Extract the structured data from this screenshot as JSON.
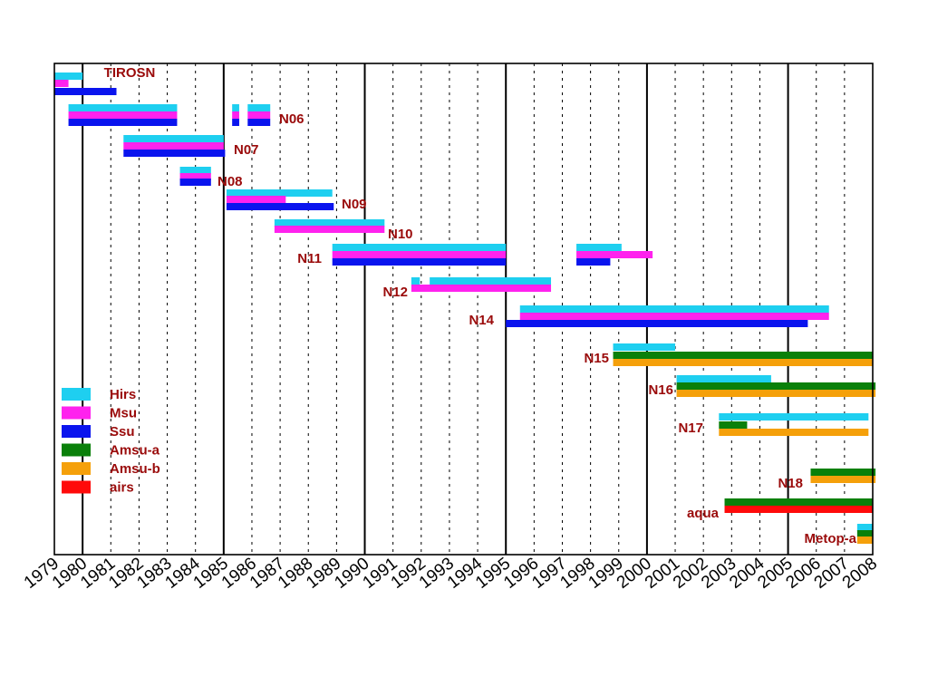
{
  "chart_data": {
    "type": "gantt",
    "title": "",
    "xlabel": "",
    "ylabel": "",
    "xlim": [
      1980.0,
      2009.0
    ],
    "x_tick_labels": [
      "1979",
      "1980",
      "1981",
      "1982",
      "1983",
      "1984",
      "1985",
      "1986",
      "1987",
      "1988",
      "1989",
      "1990",
      "1991",
      "1992",
      "1993",
      "1994",
      "1995",
      "1996",
      "1997",
      "1998",
      "1999",
      "2000",
      "2001",
      "2002",
      "2003",
      "2004",
      "2005",
      "2006",
      "2007",
      "2008"
    ],
    "major_gridlines": [
      1981,
      1986,
      1991,
      1996,
      2001,
      2006
    ],
    "grid": "dotted yearly lines, solid every 5 years",
    "colors": {
      "Hirs": "#1ecff0",
      "Msu": "#ff22ee",
      "Ssu": "#0a14ee",
      "Amsu-a": "#0a800a",
      "Amsu-b": "#f5a00a",
      "airs": "#ff0a0a",
      "label": "#9a0a0a",
      "frame": "#000000"
    },
    "legend": {
      "position": "left-middle",
      "entries": [
        "Hirs",
        "Msu",
        "Ssu",
        "Amsu-a",
        "Amsu-b",
        "airs"
      ]
    },
    "satellites": [
      {
        "name": "TIROSN",
        "bars": [
          {
            "instrument": "Hirs",
            "start": 1980.0,
            "end": 1981.0
          },
          {
            "instrument": "Msu",
            "start": 1980.0,
            "end": 1980.5
          },
          {
            "instrument": "Ssu",
            "start": 1980.0,
            "end": 1982.2
          }
        ]
      },
      {
        "name": "N06",
        "bars": [
          {
            "instrument": "Hirs",
            "start": 1980.5,
            "end": 1984.35
          },
          {
            "instrument": "Msu",
            "start": 1980.5,
            "end": 1984.35
          },
          {
            "instrument": "Ssu",
            "start": 1980.5,
            "end": 1984.35
          },
          {
            "instrument": "Hirs",
            "start": 1986.3,
            "end": 1986.55
          },
          {
            "instrument": "Msu",
            "start": 1986.3,
            "end": 1986.55
          },
          {
            "instrument": "Ssu",
            "start": 1986.3,
            "end": 1986.55
          },
          {
            "instrument": "Hirs",
            "start": 1986.85,
            "end": 1987.65
          },
          {
            "instrument": "Msu",
            "start": 1986.85,
            "end": 1987.65
          },
          {
            "instrument": "Ssu",
            "start": 1986.85,
            "end": 1987.65
          }
        ]
      },
      {
        "name": "N07",
        "bars": [
          {
            "instrument": "Hirs",
            "start": 1982.45,
            "end": 1986.0
          },
          {
            "instrument": "Msu",
            "start": 1982.45,
            "end": 1986.0
          },
          {
            "instrument": "Ssu",
            "start": 1982.45,
            "end": 1986.05
          }
        ]
      },
      {
        "name": "N08",
        "bars": [
          {
            "instrument": "Hirs",
            "start": 1984.45,
            "end": 1985.55
          },
          {
            "instrument": "Msu",
            "start": 1984.45,
            "end": 1985.55
          },
          {
            "instrument": "Ssu",
            "start": 1984.45,
            "end": 1985.55
          }
        ]
      },
      {
        "name": "N09",
        "bars": [
          {
            "instrument": "Hirs",
            "start": 1986.1,
            "end": 1989.85
          },
          {
            "instrument": "Msu",
            "start": 1986.1,
            "end": 1988.2
          },
          {
            "instrument": "Ssu",
            "start": 1986.1,
            "end": 1989.9
          }
        ]
      },
      {
        "name": "N10",
        "bars": [
          {
            "instrument": "Hirs",
            "start": 1987.8,
            "end": 1991.7
          },
          {
            "instrument": "Msu",
            "start": 1987.8,
            "end": 1991.7
          }
        ]
      },
      {
        "name": "N11",
        "bars": [
          {
            "instrument": "Hirs",
            "start": 1989.85,
            "end": 1996.0
          },
          {
            "instrument": "Msu",
            "start": 1989.85,
            "end": 1996.0
          },
          {
            "instrument": "Ssu",
            "start": 1989.85,
            "end": 1996.0
          },
          {
            "instrument": "Hirs",
            "start": 1998.5,
            "end": 2000.1
          },
          {
            "instrument": "Msu",
            "start": 1998.5,
            "end": 2001.2
          },
          {
            "instrument": "Ssu",
            "start": 1998.5,
            "end": 1999.7
          }
        ]
      },
      {
        "name": "N12",
        "bars": [
          {
            "instrument": "Hirs",
            "start": 1992.65,
            "end": 1992.95
          },
          {
            "instrument": "Hirs",
            "start": 1993.3,
            "end": 1997.6
          },
          {
            "instrument": "Msu",
            "start": 1992.65,
            "end": 1997.6
          }
        ]
      },
      {
        "name": "N14",
        "bars": [
          {
            "instrument": "Hirs",
            "start": 1996.5,
            "end": 2007.45
          },
          {
            "instrument": "Msu",
            "start": 1996.5,
            "end": 2007.45
          },
          {
            "instrument": "Ssu",
            "start": 1996.0,
            "end": 2006.7
          }
        ]
      },
      {
        "name": "N15",
        "bars": [
          {
            "instrument": "Hirs",
            "start": 1999.8,
            "end": 2002.0
          },
          {
            "instrument": "Amsu-a",
            "start": 1999.8,
            "end": 2009.0
          },
          {
            "instrument": "Amsu-b",
            "start": 1999.8,
            "end": 2009.0
          }
        ]
      },
      {
        "name": "N16",
        "bars": [
          {
            "instrument": "Hirs",
            "start": 2002.05,
            "end": 2005.4
          },
          {
            "instrument": "Amsu-a",
            "start": 2002.05,
            "end": 2009.1
          },
          {
            "instrument": "Amsu-b",
            "start": 2002.05,
            "end": 2009.1
          }
        ]
      },
      {
        "name": "N17",
        "bars": [
          {
            "instrument": "Hirs",
            "start": 2003.55,
            "end": 2008.85
          },
          {
            "instrument": "Amsu-a",
            "start": 2003.55,
            "end": 2004.55
          },
          {
            "instrument": "Amsu-b",
            "start": 2003.55,
            "end": 2008.85
          }
        ]
      },
      {
        "name": "N18",
        "bars": [
          {
            "instrument": "Amsu-a",
            "start": 2006.8,
            "end": 2009.1
          },
          {
            "instrument": "Amsu-b",
            "start": 2006.8,
            "end": 2009.1
          }
        ]
      },
      {
        "name": "aqua",
        "bars": [
          {
            "instrument": "Amsu-a",
            "start": 2003.75,
            "end": 2009.0
          },
          {
            "instrument": "airs",
            "start": 2003.75,
            "end": 2009.0
          }
        ]
      },
      {
        "name": "Metop-a",
        "bars": [
          {
            "instrument": "Hirs",
            "start": 2008.45,
            "end": 2009.0
          },
          {
            "instrument": "Amsu-a",
            "start": 2008.45,
            "end": 2009.0
          },
          {
            "instrument": "Amsu-b",
            "start": 2008.45,
            "end": 2009.0
          }
        ]
      }
    ]
  }
}
